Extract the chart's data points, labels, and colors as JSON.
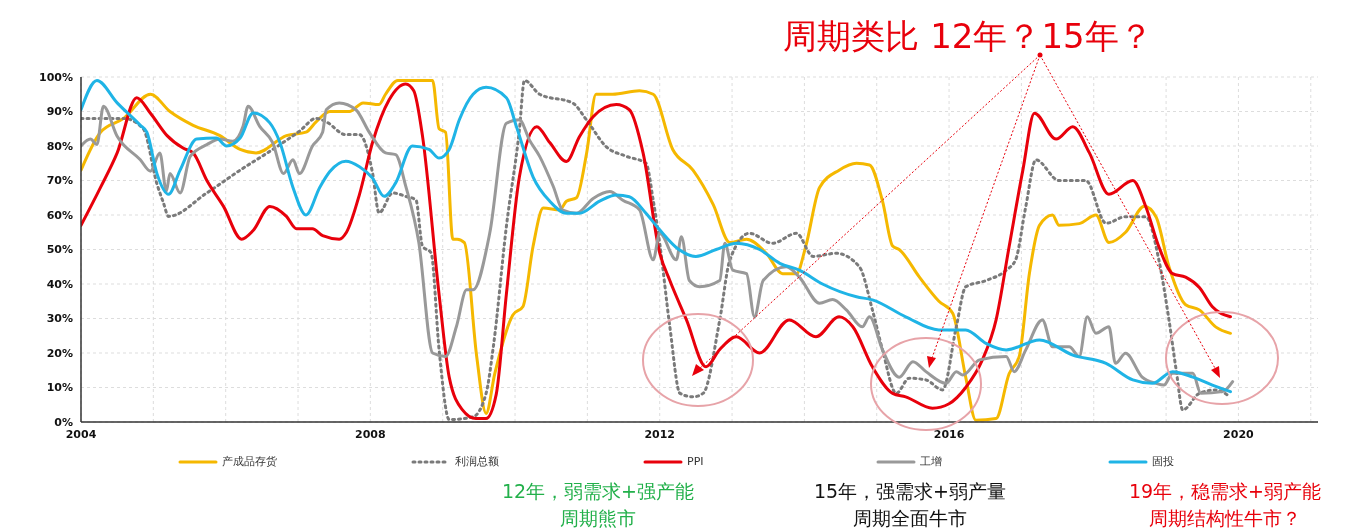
{
  "chart_data": {
    "type": "line",
    "title": "周期类比 12年？15年？",
    "xlim": [
      2004,
      2021.1
    ],
    "xticks": [
      2004,
      {
        "value": 2005,
        "label": null
      },
      {
        "value": 2006,
        "label": null
      },
      {
        "value": 2007,
        "label": null
      },
      2008,
      {
        "value": 2009,
        "label": null
      },
      {
        "value": 2010,
        "label": null
      },
      {
        "value": 2011,
        "label": null
      },
      2012,
      {
        "value": 2013,
        "label": null
      },
      {
        "value": 2014,
        "label": null
      },
      {
        "value": 2015,
        "label": null
      },
      2016,
      {
        "value": 2017,
        "label": null
      },
      {
        "value": 2018,
        "label": null
      },
      {
        "value": 2019,
        "label": null
      },
      2020,
      {
        "value": 2021,
        "label": null
      }
    ],
    "ylim": [
      0,
      100
    ],
    "yticks": [
      {
        "value": 0,
        "label": "0%"
      },
      {
        "value": 10,
        "label": "10%"
      },
      {
        "value": 20,
        "label": "20%"
      },
      {
        "value": 30,
        "label": "30%"
      },
      {
        "value": 40,
        "label": "40%"
      },
      {
        "value": 50,
        "label": "50%"
      },
      {
        "value": 60,
        "label": "60%"
      },
      {
        "value": 70,
        "label": "70%"
      },
      {
        "value": 80,
        "label": "80%"
      },
      {
        "value": 90,
        "label": "90%"
      },
      {
        "value": 100,
        "label": "100%"
      }
    ],
    "grid": true,
    "legend": "bottom",
    "annotations": [
      "12年，弱需求+强产能",
      "周期熊市",
      "15年，强需求+弱产量",
      "周期全面牛市",
      "19年，稳需求+弱产能",
      "周期结构性牛市？"
    ],
    "series": [
      {
        "name": "产成品存货",
        "color": "#f5b800",
        "line_style": "solid",
        "x": [
          2004,
          2004.27,
          2004.59,
          2004.96,
          2005.23,
          2005.55,
          2005.92,
          2006.2,
          2006.42,
          2006.84,
          2007.11,
          2007.25,
          2007.44,
          2007.71,
          2007.9,
          2008.12,
          2008.21,
          2008.38,
          2008.86,
          2008.95,
          2009.04,
          2009.14,
          2009.2,
          2009.3,
          2009.47,
          2009.6,
          2009.72,
          2009.97,
          2010.11,
          2010.25,
          2010.39,
          2010.62,
          2010.71,
          2010.85,
          2010.99,
          2011.12,
          2011.35,
          2011.72,
          2011.91,
          2012.18,
          2012.46,
          2012.74,
          2012.97,
          2013.2,
          2013.47,
          2013.7,
          2013.89,
          2014.02,
          2014.21,
          2014.48,
          2014.72,
          2014.9,
          2015.08,
          2015.22,
          2015.31,
          2015.59,
          2015.86,
          2016.05,
          2016.23,
          2016.37,
          2016.65,
          2016.83,
          2016.97,
          2017.11,
          2017.25,
          2017.43,
          2017.52,
          2017.8,
          2018.03,
          2018.21,
          2018.44,
          2018.7,
          2018.86,
          2019.04,
          2019.27,
          2019.46,
          2019.69,
          2019.89
        ],
        "values": [
          73,
          84,
          88,
          95,
          90,
          86,
          83,
          79,
          78,
          83,
          84,
          87,
          90,
          90,
          92.5,
          92,
          95,
          99,
          99,
          85,
          84,
          53,
          53,
          52,
          19,
          2.5,
          14,
          31,
          33.5,
          51,
          62,
          61.5,
          64,
          65,
          78,
          95,
          95,
          96,
          95,
          79,
          73,
          63,
          52,
          53,
          49,
          43,
          43,
          51,
          68,
          73,
          75,
          74.5,
          64,
          51,
          50,
          42,
          35,
          31.5,
          13,
          0.5,
          1,
          14,
          19,
          43,
          57,
          60,
          57,
          57.5,
          60,
          52,
          55,
          62.5,
          59.5,
          45,
          34,
          32.5,
          27.5,
          25.7
        ]
      },
      {
        "name": "利润总额",
        "color": "#7a7a7a",
        "line_style": "dotted",
        "x": [
          2004,
          2004.59,
          2004.86,
          2005.05,
          2005.14,
          2005.21,
          2005.74,
          2006.2,
          2006.65,
          2007.02,
          2007.25,
          2007.39,
          2007.66,
          2007.85,
          2008.03,
          2008.12,
          2008.31,
          2008.49,
          2008.63,
          2008.72,
          2008.84,
          2008.95,
          2009.09,
          2009.42,
          2009.6,
          2009.7,
          2009.88,
          2010.06,
          2010.13,
          2010.34,
          2010.8,
          2010.99,
          2011.26,
          2011.54,
          2011.81,
          2011.91,
          2012,
          2012.14,
          2012.28,
          2012.46,
          2012.6,
          2012.83,
          2012.97,
          2013.24,
          2013.56,
          2013.89,
          2014.12,
          2014.44,
          2014.76,
          2014.94,
          2015.08,
          2015.27,
          2015.45,
          2015.68,
          2015.91,
          2016.1,
          2016.23,
          2016.51,
          2016.79,
          2016.92,
          2017.06,
          2017.2,
          2017.52,
          2017.89,
          2018.17,
          2018.44,
          2018.72,
          2018.9,
          2019.04,
          2019.14,
          2019.23,
          2019.46,
          2019.69,
          2019.85
        ],
        "values": [
          88,
          88,
          85,
          69,
          63.5,
          59.6,
          66.4,
          73,
          79,
          84.3,
          88,
          87,
          83.3,
          83.3,
          72.2,
          60.6,
          66.4,
          65.4,
          64.4,
          51,
          49,
          21,
          0.7,
          1.5,
          8.3,
          21.8,
          56.6,
          84.6,
          99,
          95,
          92.4,
          87.5,
          79.8,
          77,
          75,
          64.3,
          51.8,
          27.6,
          8.3,
          7.3,
          8.3,
          29.6,
          47,
          54.7,
          51.8,
          54.7,
          48,
          48.9,
          45,
          32.5,
          20.9,
          8.3,
          12.7,
          12.2,
          9.3,
          27.6,
          39.2,
          41,
          44,
          47,
          62.4,
          76,
          70,
          70,
          57.6,
          59.5,
          59.5,
          47,
          29.6,
          15,
          3.5,
          8.3,
          9.3,
          7.8
        ]
      },
      {
        "name": "PPI",
        "color": "#e8000b",
        "line_style": "solid",
        "x": [
          2004,
          2004.27,
          2004.5,
          2004.77,
          2004.96,
          2005.19,
          2005.41,
          2005.55,
          2005.74,
          2005.97,
          2006.22,
          2006.38,
          2006.61,
          2006.84,
          2006.98,
          2007.2,
          2007.34,
          2007.57,
          2007.67,
          2007.85,
          2008.03,
          2008.26,
          2008.49,
          2008.6,
          2008.72,
          2008.95,
          2009.09,
          2009.27,
          2009.46,
          2009.6,
          2009.74,
          2009.88,
          2010.06,
          2010.3,
          2010.48,
          2010.71,
          2010.89,
          2011.08,
          2011.4,
          2011.58,
          2011.77,
          2012,
          2012.14,
          2012.37,
          2012.64,
          2012.83,
          2013.06,
          2013.38,
          2013.79,
          2014.16,
          2014.48,
          2014.67,
          2014.94,
          2015.22,
          2015.4,
          2015.77,
          2016,
          2016.23,
          2016.46,
          2016.65,
          2016.83,
          2017.02,
          2017.18,
          2017.48,
          2017.71,
          2017.94,
          2018.21,
          2018.54,
          2018.72,
          2018.9,
          2019.09,
          2019.27,
          2019.46,
          2019.64,
          2019.89
        ],
        "values": [
          57,
          68,
          78,
          94,
          89.5,
          83,
          79.4,
          78,
          70,
          62.5,
          53,
          55.5,
          62.5,
          59.6,
          56,
          56,
          54,
          53,
          55,
          66,
          81,
          93.4,
          98,
          96,
          83,
          37,
          13,
          3.6,
          1,
          1,
          8,
          37,
          71,
          85.6,
          81,
          75.5,
          82.7,
          88.5,
          92,
          90.5,
          78,
          49,
          41,
          29.6,
          16,
          21,
          24.7,
          20,
          29.6,
          24.7,
          30.5,
          27.6,
          16,
          8.3,
          7.3,
          4,
          5.3,
          10,
          18,
          29.6,
          50.8,
          73,
          89.5,
          82,
          85.6,
          78,
          66,
          70,
          62.4,
          50.8,
          43,
          42,
          39,
          33.4,
          30.5
        ]
      },
      {
        "name": "工增",
        "color": "#999999",
        "line_style": "solid",
        "x": [
          2004,
          2004.13,
          2004.22,
          2004.31,
          2004.5,
          2004.82,
          2004.96,
          2005.09,
          2005.18,
          2005.23,
          2005.37,
          2005.51,
          2005.74,
          2005.92,
          2006.1,
          2006.24,
          2006.31,
          2006.47,
          2006.65,
          2006.8,
          2006.93,
          2007.02,
          2007.2,
          2007.34,
          2007.39,
          2007.57,
          2007.8,
          2007.99,
          2008.21,
          2008.35,
          2008.49,
          2008.67,
          2008.86,
          2009.04,
          2009.19,
          2009.33,
          2009.42,
          2009.65,
          2009.88,
          2010.06,
          2010.2,
          2010.34,
          2010.53,
          2010.66,
          2010.85,
          2011.08,
          2011.31,
          2011.49,
          2011.72,
          2011.91,
          2012,
          2012.23,
          2012.3,
          2012.41,
          2012.55,
          2012.83,
          2012.9,
          2013.01,
          2013.2,
          2013.31,
          2013.43,
          2013.75,
          2013.93,
          2014.21,
          2014.39,
          2014.58,
          2014.8,
          2014.9,
          2015.08,
          2015.31,
          2015.5,
          2015.68,
          2015.96,
          2016.1,
          2016.19,
          2016.42,
          2016.79,
          2016.9,
          2017.06,
          2017.29,
          2017.43,
          2017.66,
          2017.8,
          2017.91,
          2018.03,
          2018.21,
          2018.3,
          2018.44,
          2018.67,
          2018.86,
          2018.97,
          2019.09,
          2019.37,
          2019.48,
          2019.78,
          2019.92
        ],
        "values": [
          80,
          82,
          80.4,
          91.5,
          82.8,
          76,
          72.7,
          78,
          66.9,
          72,
          66.4,
          77,
          80.4,
          82,
          81.4,
          85.7,
          91.5,
          85.7,
          81,
          72,
          76,
          72,
          80,
          84,
          90.5,
          92.5,
          90.5,
          83.8,
          78,
          77.5,
          68.3,
          52,
          20,
          19,
          27.7,
          38.3,
          38.3,
          54.7,
          86.6,
          87.6,
          81.7,
          77,
          68.2,
          61.4,
          60.5,
          64.8,
          66.8,
          64.3,
          61.5,
          47,
          54.7,
          47,
          53.7,
          41,
          39.2,
          41,
          51.8,
          44,
          43,
          30.5,
          41,
          45,
          42,
          34.4,
          35.5,
          32.5,
          27.6,
          30.5,
          20.9,
          13,
          17.5,
          14.6,
          11.2,
          14.6,
          13.6,
          18,
          19,
          14.6,
          20.9,
          29.6,
          21.8,
          21.8,
          19,
          30.5,
          25.7,
          27.6,
          17,
          19.9,
          13,
          11.2,
          10.7,
          14.1,
          14.1,
          8.3,
          8.8,
          11.7
        ]
      },
      {
        "name": "固投",
        "color": "#1fb4e6",
        "line_style": "solid",
        "x": [
          2004,
          2004.22,
          2004.5,
          2004.82,
          2004.91,
          2005.05,
          2005.21,
          2005.37,
          2005.6,
          2005.87,
          2006.01,
          2006.2,
          2006.38,
          2006.61,
          2006.75,
          2006.93,
          2007.11,
          2007.3,
          2007.44,
          2007.66,
          2007.85,
          2008.03,
          2008.19,
          2008.35,
          2008.58,
          2008.81,
          2008.95,
          2009.09,
          2009.23,
          2009.42,
          2009.6,
          2009.88,
          2010.02,
          2010.25,
          2010.48,
          2010.71,
          2010.89,
          2011.17,
          2011.4,
          2011.58,
          2011.81,
          2012,
          2012.27,
          2012.5,
          2012.78,
          2013.06,
          2013.38,
          2013.66,
          2013.93,
          2014.25,
          2014.72,
          2014.94,
          2015.4,
          2015.86,
          2016.23,
          2016.51,
          2016.79,
          2017.25,
          2017.71,
          2018.17,
          2018.54,
          2018.81,
          2019.09,
          2019.37,
          2019.64,
          2019.89
        ],
        "values": [
          90.5,
          99,
          92.5,
          86,
          84,
          72,
          66,
          73,
          82,
          82.3,
          80,
          82.3,
          89.6,
          86.7,
          81,
          68,
          60,
          68,
          72.6,
          75.6,
          74,
          70.7,
          65.4,
          69.3,
          80,
          79,
          76.5,
          79,
          87.6,
          95,
          97,
          94,
          85.6,
          71,
          64,
          60.5,
          60.5,
          64,
          65.8,
          65.3,
          60.5,
          55.7,
          49.9,
          48,
          50,
          51.8,
          50,
          46,
          44,
          40,
          36.3,
          35.4,
          30.5,
          26.7,
          26.7,
          22.8,
          20.9,
          23.8,
          19.4,
          17,
          12.2,
          11.2,
          14.6,
          13,
          10.7,
          8.8
        ]
      }
    ]
  }
}
